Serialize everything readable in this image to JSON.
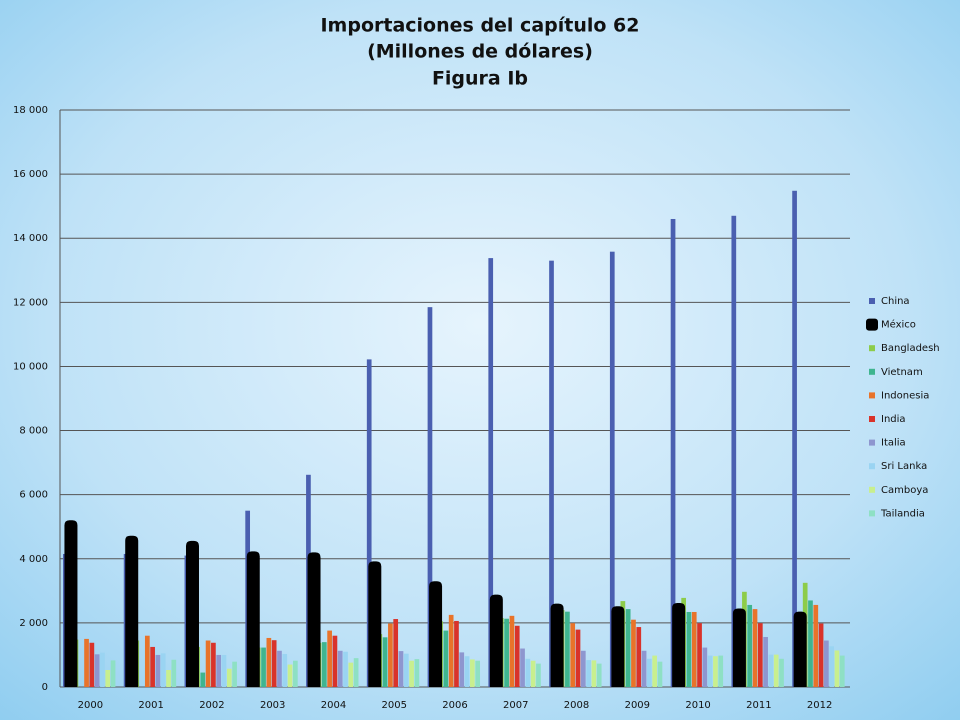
{
  "chart_data": {
    "type": "bar",
    "title": "Importaciones del capítulo 62",
    "subtitle": "(Millones de dólares)",
    "figure_label": "Figura Ib",
    "categories": [
      "2000",
      "2001",
      "2002",
      "2003",
      "2004",
      "2005",
      "2006",
      "2007",
      "2008",
      "2009",
      "2010",
      "2011",
      "2012"
    ],
    "series": [
      {
        "name": "China",
        "color": "#4a5fb0",
        "values": [
          4150,
          4150,
          4100,
          5500,
          6620,
          10220,
          11850,
          13380,
          13300,
          13580,
          14600,
          14700,
          15480
        ]
      },
      {
        "name": "México",
        "color": "#000000",
        "values": [
          5200,
          4720,
          4560,
          4230,
          4200,
          3920,
          3300,
          2880,
          2600,
          2520,
          2620,
          2450,
          2350
        ]
      },
      {
        "name": "Bangladesh",
        "color": "#8dcc4a",
        "values": [
          1480,
          1450,
          1250,
          1230,
          1380,
          1650,
          2050,
          2150,
          2400,
          2680,
          2780,
          2970,
          3250
        ]
      },
      {
        "name": "Vietnam",
        "color": "#3fb58f",
        "values": [
          null,
          null,
          450,
          1230,
          1400,
          1550,
          1760,
          2130,
          2350,
          2430,
          2340,
          2560,
          2700
        ]
      },
      {
        "name": "Indonesia",
        "color": "#e8732a",
        "values": [
          1500,
          1600,
          1450,
          1530,
          1760,
          1980,
          2250,
          2220,
          1990,
          2100,
          2340,
          2430,
          2560
        ]
      },
      {
        "name": "India",
        "color": "#d9332a",
        "values": [
          1380,
          1250,
          1380,
          1460,
          1600,
          2120,
          2060,
          1910,
          1790,
          1870,
          1990,
          1990,
          1980
        ]
      },
      {
        "name": "Italia",
        "color": "#8e96cf",
        "values": [
          1020,
          1000,
          1000,
          1130,
          1130,
          1120,
          1080,
          1200,
          1130,
          1130,
          1230,
          1560,
          1450
        ]
      },
      {
        "name": "Sri Lanka",
        "color": "#9ad4f2",
        "values": [
          1070,
          1050,
          1000,
          1030,
          1100,
          1040,
          960,
          880,
          840,
          880,
          980,
          1010,
          1270
        ]
      },
      {
        "name": "Camboya",
        "color": "#c8ef8e",
        "values": [
          530,
          530,
          570,
          700,
          760,
          820,
          860,
          820,
          830,
          980,
          960,
          1010,
          1140
        ]
      },
      {
        "name": "Tailandia",
        "color": "#8ee0c4",
        "values": [
          830,
          850,
          790,
          820,
          900,
          870,
          820,
          730,
          730,
          790,
          980,
          880,
          980
        ]
      }
    ],
    "ylim": [
      0,
      18000
    ],
    "yticks": [
      0,
      {
        "value": 2000,
        "label": "2 000"
      },
      {
        "value": 4000,
        "label": "4 000"
      },
      {
        "value": 6000,
        "label": "6 000"
      },
      {
        "value": 8000,
        "label": "8 000"
      },
      {
        "value": 10000,
        "label": "10 000"
      },
      {
        "value": 12000,
        "label": "12 000"
      },
      {
        "value": 14000,
        "label": "14 000"
      },
      {
        "value": 16000,
        "label": "16 000"
      },
      {
        "value": 18000,
        "label": "18 000"
      }
    ],
    "grid": true,
    "legend": "right"
  }
}
